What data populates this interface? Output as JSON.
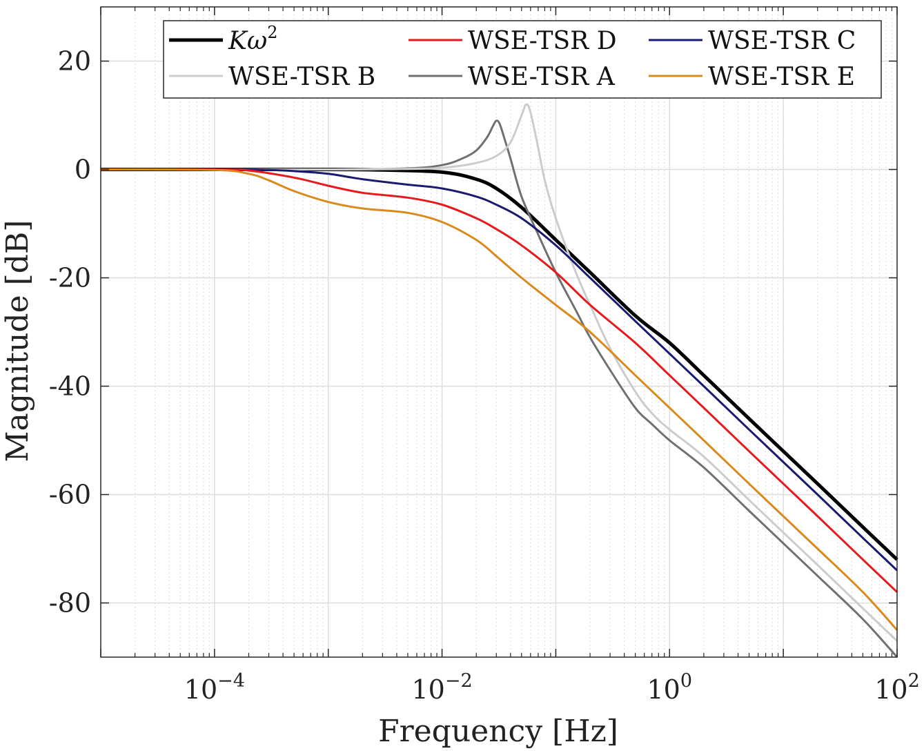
{
  "chart_data": {
    "type": "line",
    "title": "",
    "xlabel": "Frequency [Hz]",
    "ylabel": "Magnitude [dB]",
    "xscale": "log",
    "xlim": [
      1e-05,
      100
    ],
    "ylim": [
      -90,
      30
    ],
    "grid": true,
    "minor_grid": true,
    "legend_position": "top-right",
    "x_ticks": [
      {
        "value": 0.0001,
        "base": "10",
        "exp": "−4"
      },
      {
        "value": 0.01,
        "base": "10",
        "exp": "−2"
      },
      {
        "value": 1,
        "base": "10",
        "exp": "0"
      },
      {
        "value": 100,
        "base": "10",
        "exp": "2"
      }
    ],
    "y_ticks": [
      {
        "value": 20,
        "label": "20"
      },
      {
        "value": 0,
        "label": "0"
      },
      {
        "value": -20,
        "label": "-20"
      },
      {
        "value": -40,
        "label": "-40"
      },
      {
        "value": -60,
        "label": "-60"
      },
      {
        "value": -80,
        "label": "-80"
      }
    ],
    "series": [
      {
        "name_main": "K",
        "name_greek": "ω",
        "name_sup": "2",
        "color": "#000000",
        "width": 5,
        "x": [
          1e-05,
          0.0001,
          0.001,
          0.003,
          0.01,
          0.02,
          0.03,
          0.05,
          0.1,
          0.2,
          0.5,
          1,
          2,
          5,
          10,
          20,
          50,
          100
        ],
        "y": [
          0,
          0,
          0,
          -0.1,
          -0.5,
          -1.8,
          -3.5,
          -7,
          -13,
          -19,
          -27,
          -32,
          -38,
          -46,
          -52,
          -58,
          -66,
          -72
        ]
      },
      {
        "name": "WSE-TSR A",
        "color": "#707070",
        "width": 3,
        "x": [
          1e-05,
          0.001,
          0.005,
          0.01,
          0.015,
          0.02,
          0.025,
          0.028,
          0.03,
          0.032,
          0.035,
          0.04,
          0.05,
          0.07,
          0.1,
          0.15,
          0.2,
          0.3,
          0.5,
          0.7,
          1,
          2,
          5,
          10,
          20,
          50,
          100
        ],
        "y": [
          0,
          0,
          0.2,
          0.8,
          2,
          3.5,
          6,
          8,
          9,
          8.5,
          6,
          2,
          -5,
          -12,
          -19,
          -26,
          -31,
          -37,
          -44,
          -47,
          -50,
          -55,
          -63,
          -69,
          -75,
          -83,
          -90
        ]
      },
      {
        "name": "WSE-TSR B",
        "color": "#cccccc",
        "width": 3,
        "x": [
          1e-05,
          0.001,
          0.005,
          0.01,
          0.02,
          0.03,
          0.04,
          0.05,
          0.055,
          0.06,
          0.07,
          0.08,
          0.1,
          0.15,
          0.2,
          0.3,
          0.5,
          0.7,
          1,
          2,
          5,
          10,
          20,
          50,
          100
        ],
        "y": [
          0,
          0,
          0.1,
          0.3,
          1.2,
          2.5,
          5,
          10,
          12,
          10.5,
          4,
          -2,
          -9,
          -19,
          -25,
          -33,
          -41,
          -45,
          -48,
          -53,
          -61,
          -67,
          -73,
          -81,
          -87
        ]
      },
      {
        "name": "WSE-TSR C",
        "color": "#1a1a70",
        "width": 3,
        "x": [
          1e-05,
          0.0001,
          0.0003,
          0.0005,
          0.001,
          0.002,
          0.005,
          0.01,
          0.02,
          0.03,
          0.05,
          0.1,
          0.2,
          0.5,
          1,
          2,
          5,
          10,
          20,
          50,
          100
        ],
        "y": [
          0,
          0,
          -0.1,
          -0.3,
          -0.8,
          -1.8,
          -2.8,
          -3.5,
          -5,
          -6.5,
          -9,
          -14,
          -20,
          -28,
          -34,
          -40,
          -48,
          -54,
          -60,
          -68,
          -74
        ]
      },
      {
        "name": "WSE-TSR D",
        "color": "#e8191c",
        "width": 3,
        "x": [
          1e-05,
          0.0001,
          0.0002,
          0.0005,
          0.001,
          0.002,
          0.005,
          0.01,
          0.02,
          0.03,
          0.05,
          0.1,
          0.2,
          0.5,
          1,
          2,
          5,
          10,
          20,
          50,
          100
        ],
        "y": [
          0,
          0,
          -0.2,
          -1.5,
          -3,
          -4.3,
          -5.2,
          -6.5,
          -9,
          -11,
          -14,
          -19,
          -25,
          -32,
          -38,
          -44,
          -52,
          -58,
          -64,
          -72,
          -78
        ]
      },
      {
        "name": "WSE-TSR E",
        "color": "#d98a1c",
        "width": 3,
        "x": [
          1e-05,
          0.0001,
          0.0002,
          0.0003,
          0.0005,
          0.001,
          0.002,
          0.005,
          0.01,
          0.02,
          0.03,
          0.05,
          0.1,
          0.2,
          0.5,
          1,
          2,
          5,
          10,
          20,
          50,
          100
        ],
        "y": [
          0,
          -0.1,
          -0.8,
          -2,
          -4,
          -6,
          -7.2,
          -8,
          -9.7,
          -13,
          -16,
          -20,
          -25,
          -30,
          -38,
          -44,
          -50,
          -58,
          -64,
          -70,
          -78,
          -85
        ]
      }
    ]
  }
}
